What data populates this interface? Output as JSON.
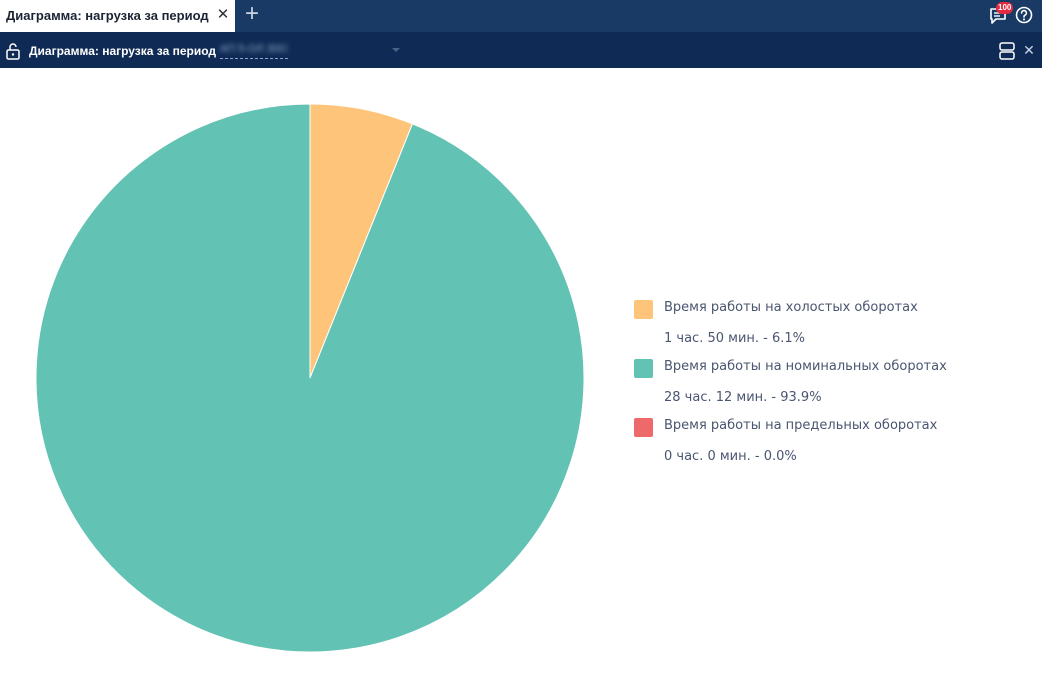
{
  "tabs": {
    "active_title": "Диаграмма: нагрузка за период",
    "close_glyph": "✕",
    "add_glyph": "+"
  },
  "header": {
    "messages_count": "100",
    "messages_icon": "message-icon",
    "help_icon": "help-icon"
  },
  "toolbar": {
    "title": "Диаграмма: нагрузка за период",
    "object_value": "АП 5-ОЛ 3007",
    "lock_icon": "unlock-icon",
    "layout_icon": "split-layout-icon",
    "close_glyph": "✕"
  },
  "colors": {
    "tabbar": "#1a3a66",
    "toolbar": "#0f2b55",
    "idle": "#fec57a",
    "nominal": "#62c2b3",
    "limit": "#ee6a6a"
  },
  "chart_data": {
    "type": "pie",
    "categories": [
      "Время работы на холостых оборотах",
      "Время работы на номинальных оборотах",
      "Время работы на предельных оборотах"
    ],
    "values": [
      6.1,
      93.9,
      0.0
    ],
    "value_labels": [
      "1 час. 50 мин. - 6.1%",
      "28 час. 12 мин. - 93.9%",
      "0 час. 0 мин. - 0.0%"
    ],
    "colors": [
      "#fec57a",
      "#62c2b3",
      "#ee6a6a"
    ],
    "legend_position": "right"
  }
}
